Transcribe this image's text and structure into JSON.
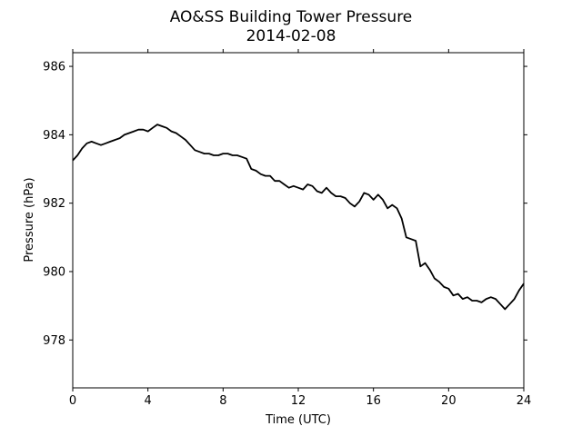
{
  "chart_data": {
    "type": "line",
    "title": "AO&SS Building Tower Pressure",
    "subtitle": "2014-02-08",
    "xlabel": "Time (UTC)",
    "ylabel": "Pressure (hPa)",
    "xlim": [
      0,
      24
    ],
    "ylim": [
      976.6,
      986.4
    ],
    "xticks": [
      0,
      4,
      8,
      12,
      16,
      20,
      24
    ],
    "yticks": [
      978,
      980,
      982,
      984,
      986
    ],
    "grid": false,
    "line_color": "#000000",
    "series": [
      {
        "x": [
          0.0,
          0.25,
          0.5,
          0.75,
          1.0,
          1.25,
          1.5,
          1.75,
          2.0,
          2.25,
          2.5,
          2.75,
          3.0,
          3.25,
          3.5,
          3.75,
          4.0,
          4.25,
          4.5,
          4.75,
          5.0,
          5.25,
          5.5,
          5.75,
          6.0,
          6.25,
          6.5,
          6.75,
          7.0,
          7.25,
          7.5,
          7.75,
          8.0,
          8.25,
          8.5,
          8.75,
          9.0,
          9.25,
          9.5,
          9.75,
          10.0,
          10.25,
          10.5,
          10.75,
          11.0,
          11.25,
          11.5,
          11.75,
          12.0,
          12.25,
          12.5,
          12.75,
          13.0,
          13.25,
          13.5,
          13.75,
          14.0,
          14.25,
          14.5,
          14.75,
          15.0,
          15.25,
          15.5,
          15.75,
          16.0,
          16.25,
          16.5,
          16.75,
          17.0,
          17.25,
          17.5,
          17.75,
          18.0,
          18.25,
          18.5,
          18.75,
          19.0,
          19.25,
          19.5,
          19.75,
          20.0,
          20.25,
          20.5,
          20.75,
          21.0,
          21.25,
          21.5,
          21.75,
          22.0,
          22.25,
          22.5,
          22.75,
          23.0,
          23.25,
          23.5,
          23.75,
          24.0
        ],
        "y": [
          983.25,
          983.4,
          983.6,
          983.75,
          983.8,
          983.75,
          983.7,
          983.75,
          983.8,
          983.85,
          983.9,
          984.0,
          984.05,
          984.1,
          984.15,
          984.15,
          984.1,
          984.2,
          984.3,
          984.25,
          984.2,
          984.1,
          984.05,
          983.95,
          983.85,
          983.7,
          983.55,
          983.5,
          983.45,
          983.45,
          983.4,
          983.4,
          983.45,
          983.45,
          983.4,
          983.4,
          983.35,
          983.3,
          983.0,
          982.95,
          982.85,
          982.8,
          982.8,
          982.65,
          982.65,
          982.55,
          982.45,
          982.5,
          982.45,
          982.4,
          982.55,
          982.5,
          982.35,
          982.3,
          982.45,
          982.3,
          982.2,
          982.2,
          982.15,
          982.0,
          981.9,
          982.05,
          982.3,
          982.25,
          982.1,
          982.25,
          982.1,
          981.85,
          981.95,
          981.85,
          981.55,
          981.0,
          980.95,
          980.9,
          980.15,
          980.25,
          980.05,
          979.8,
          979.7,
          979.55,
          979.5,
          979.3,
          979.35,
          979.2,
          979.25,
          979.15,
          979.15,
          979.1,
          979.2,
          979.25,
          979.2,
          979.05,
          978.9,
          979.05,
          979.2,
          979.45,
          979.65
        ]
      }
    ]
  }
}
